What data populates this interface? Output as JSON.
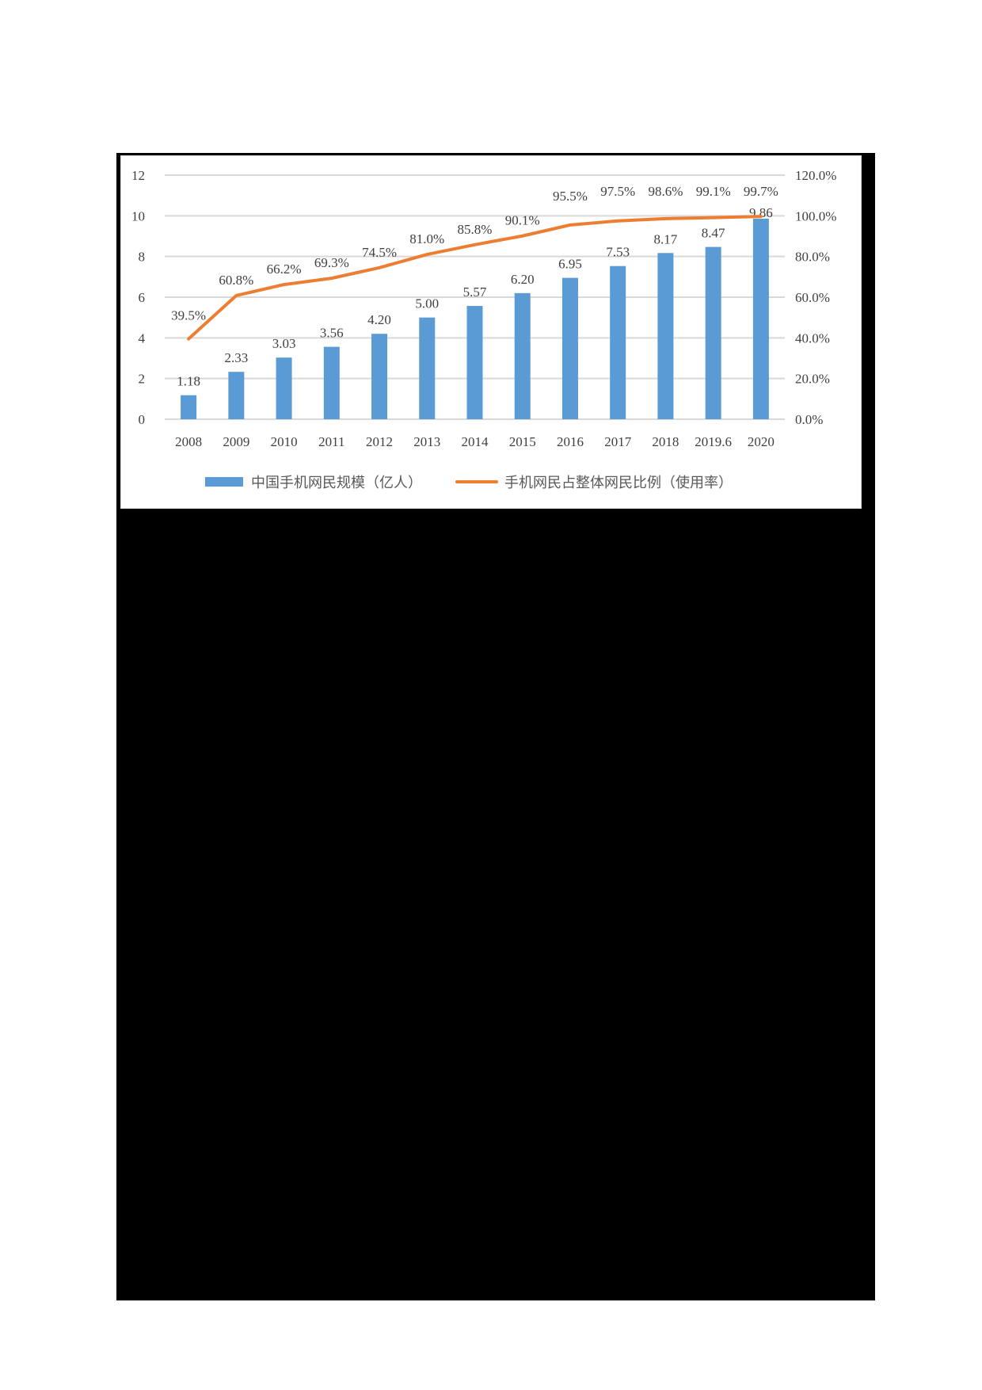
{
  "chart_data": {
    "type": "bar+line",
    "title": "",
    "categories": [
      "2008",
      "2009",
      "2010",
      "2011",
      "2012",
      "2013",
      "2014",
      "2015",
      "2016",
      "2017",
      "2018",
      "2019.6",
      "2020"
    ],
    "series": [
      {
        "name": "中国手机网民规模（亿人）",
        "type": "bar",
        "axis": "left",
        "color": "#5b9bd5",
        "values": [
          1.18,
          2.33,
          3.03,
          3.56,
          4.2,
          5.0,
          5.57,
          6.2,
          6.95,
          7.53,
          8.17,
          8.47,
          9.86
        ],
        "labels": [
          "1.18",
          "2.33",
          "3.03",
          "3.56",
          "4.20",
          "5.00",
          "5.57",
          "6.20",
          "6.95",
          "7.53",
          "8.17",
          "8.47",
          "9.86"
        ]
      },
      {
        "name": "手机网民占整体网民比例（使用率）",
        "type": "line",
        "axis": "right",
        "color": "#ed7d31",
        "values": [
          39.5,
          60.8,
          66.2,
          69.3,
          74.5,
          81.0,
          85.8,
          90.1,
          95.5,
          97.5,
          98.6,
          99.1,
          99.7
        ],
        "labels": [
          "39.5%",
          "60.8%",
          "66.2%",
          "69.3%",
          "74.5%",
          "81.0%",
          "85.8%",
          "90.1%",
          "95.5%",
          "97.5%",
          "98.6%",
          "99.1%",
          "99.7%"
        ]
      }
    ],
    "left_axis": {
      "min": 0,
      "max": 12,
      "ticks": [
        "0",
        "2",
        "4",
        "6",
        "8",
        "10",
        "12"
      ]
    },
    "right_axis": {
      "min": 0,
      "max": 120,
      "ticks": [
        "0.0%",
        "20.0%",
        "40.0%",
        "60.0%",
        "80.0%",
        "100.0%",
        "120.0%"
      ]
    },
    "xlabel": "",
    "ylabel": "",
    "grid": true,
    "legend_position": "bottom"
  },
  "colors": {
    "bar": "#5b9bd5",
    "line": "#ed7d31",
    "grid": "#d9d9d9",
    "text": "#404040",
    "redaction": "#000000"
  }
}
